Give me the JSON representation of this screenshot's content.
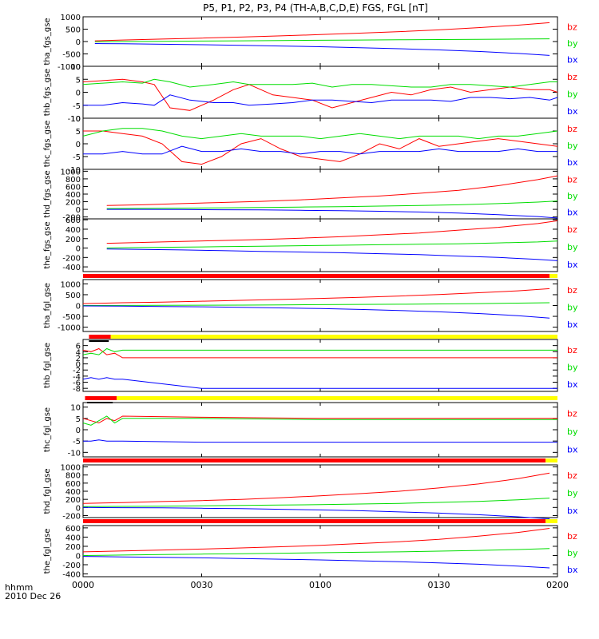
{
  "figure": {
    "title": "P5, P1, P2, P3, P4 (TH-A,B,C,D,E) FGS, FGL [nT]",
    "xtick_labels": [
      "0000",
      "0030",
      "0100",
      "0130",
      "0200"
    ],
    "footer_line1": "hhmm",
    "footer_line2": "2010 Dec 26"
  },
  "colors": {
    "bx": "#0000ff",
    "by": "#00dd00",
    "bz": "#ff0000",
    "bar_red": "#ff0000",
    "bar_yellow": "#ffff00",
    "bar_black": "#000000"
  },
  "chart_data": [
    {
      "type": "line",
      "ylabel": "tha_fgs_gse",
      "x": [
        3,
        10,
        20,
        30,
        40,
        50,
        60,
        70,
        80,
        90,
        100,
        110,
        118
      ],
      "ylim": [
        -1000,
        1000
      ],
      "yticks": [
        1000,
        500,
        0,
        -500,
        -1000
      ],
      "series": [
        {
          "name": "bz",
          "values": [
            30,
            60,
            100,
            140,
            180,
            230,
            280,
            340,
            400,
            470,
            560,
            660,
            760
          ]
        },
        {
          "name": "by",
          "values": [
            -10,
            0,
            10,
            20,
            30,
            40,
            50,
            60,
            70,
            80,
            90,
            100,
            110
          ]
        },
        {
          "name": "bx",
          "values": [
            -80,
            -90,
            -110,
            -130,
            -150,
            -180,
            -210,
            -250,
            -290,
            -340,
            -400,
            -480,
            -560
          ]
        }
      ]
    },
    {
      "type": "line",
      "ylabel": "thb_fgs_gse",
      "x": [
        0,
        5,
        10,
        15,
        18,
        22,
        27,
        33,
        38,
        42,
        48,
        53,
        58,
        63,
        68,
        73,
        78,
        83,
        88,
        93,
        98,
        103,
        108,
        113,
        118,
        120
      ],
      "ylim": [
        -10,
        10
      ],
      "yticks": [
        10,
        5,
        0,
        -5,
        -10
      ],
      "series": [
        {
          "name": "bz",
          "values": [
            4,
            4.5,
            5,
            4,
            3,
            -6,
            -7,
            -3,
            1,
            3,
            -1,
            -2,
            -3,
            -6,
            -4,
            -2,
            0,
            -1,
            1,
            2,
            0,
            1,
            2,
            1,
            1,
            0
          ]
        },
        {
          "name": "by",
          "values": [
            3,
            3.5,
            4,
            3.5,
            5,
            4,
            2,
            3,
            4,
            3,
            3,
            3,
            3.5,
            2,
            3,
            3,
            2.5,
            2,
            2,
            3,
            3,
            2.5,
            2,
            3,
            4,
            4
          ]
        },
        {
          "name": "bx",
          "values": [
            -5,
            -5,
            -4,
            -4.5,
            -5,
            -1,
            -3,
            -4,
            -4,
            -5,
            -4.5,
            -4,
            -3,
            -3,
            -3.5,
            -4,
            -3,
            -3,
            -3,
            -3.5,
            -2,
            -2,
            -2.5,
            -2,
            -3,
            -2
          ]
        }
      ]
    },
    {
      "type": "line",
      "ylabel": "thc_fgs_gse",
      "x": [
        0,
        5,
        10,
        15,
        20,
        25,
        30,
        35,
        40,
        45,
        50,
        55,
        60,
        65,
        70,
        75,
        80,
        85,
        90,
        95,
        100,
        105,
        110,
        115,
        120
      ],
      "ylim": [
        -10,
        10
      ],
      "yticks": [
        10,
        5,
        0,
        -5,
        -10
      ],
      "series": [
        {
          "name": "bz",
          "values": [
            5,
            5,
            4,
            3,
            0,
            -7,
            -8,
            -5,
            0,
            2,
            -2,
            -5,
            -6,
            -7,
            -4,
            0,
            -2,
            2,
            -1,
            0,
            1,
            2,
            1,
            0,
            -1
          ]
        },
        {
          "name": "by",
          "values": [
            3,
            5,
            6,
            6,
            5,
            3,
            2,
            3,
            4,
            3,
            3,
            3,
            2,
            3,
            4,
            3,
            2,
            3,
            3,
            3,
            2,
            3,
            3,
            4,
            5
          ]
        },
        {
          "name": "bx",
          "values": [
            -4,
            -4,
            -3,
            -4,
            -4,
            -1,
            -3,
            -3,
            -2,
            -3,
            -3,
            -4,
            -3,
            -3,
            -4,
            -3,
            -3,
            -3,
            -2,
            -3,
            -3,
            -3,
            -2,
            -3,
            -3
          ]
        }
      ]
    },
    {
      "type": "line",
      "ylabel": "thd_fgs_gse",
      "x": [
        6,
        15,
        25,
        35,
        45,
        55,
        65,
        75,
        85,
        95,
        105,
        115,
        120
      ],
      "ylim": [
        -250,
        1050
      ],
      "yticks": [
        1000,
        800,
        600,
        400,
        200,
        0,
        -200
      ],
      "series": [
        {
          "name": "bz",
          "values": [
            100,
            120,
            150,
            180,
            210,
            250,
            300,
            350,
            420,
            500,
            620,
            780,
            880
          ]
        },
        {
          "name": "by",
          "values": [
            20,
            25,
            30,
            40,
            50,
            60,
            70,
            85,
            100,
            120,
            150,
            190,
            220
          ]
        },
        {
          "name": "bx",
          "values": [
            0,
            0,
            -5,
            -10,
            -15,
            -25,
            -35,
            -50,
            -70,
            -100,
            -140,
            -190,
            -230
          ]
        }
      ]
    },
    {
      "type": "line",
      "ylabel": "the_fgs_gse",
      "x": [
        6,
        15,
        25,
        35,
        45,
        55,
        65,
        75,
        85,
        95,
        105,
        115,
        120
      ],
      "ylim": [
        -500,
        620
      ],
      "yticks": [
        600,
        400,
        200,
        0,
        -200,
        -400
      ],
      "series": [
        {
          "name": "bz",
          "values": [
            100,
            120,
            140,
            160,
            180,
            210,
            240,
            280,
            320,
            380,
            440,
            520,
            580
          ]
        },
        {
          "name": "by",
          "values": [
            0,
            10,
            20,
            30,
            40,
            50,
            60,
            70,
            80,
            90,
            110,
            130,
            150
          ]
        },
        {
          "name": "bx",
          "values": [
            -20,
            -30,
            -40,
            -55,
            -70,
            -85,
            -100,
            -120,
            -140,
            -170,
            -200,
            -240,
            -270
          ]
        }
      ]
    },
    {
      "type": "line",
      "ylabel": "tha_fgl_gse",
      "x": [
        0,
        10,
        20,
        30,
        40,
        50,
        60,
        70,
        80,
        90,
        100,
        110,
        118
      ],
      "ylim": [
        -1200,
        1200
      ],
      "yticks": [
        1000,
        500,
        0,
        -500,
        -1000
      ],
      "series": [
        {
          "name": "bz",
          "values": [
            90,
            130,
            160,
            200,
            240,
            280,
            330,
            380,
            440,
            510,
            590,
            680,
            780
          ]
        },
        {
          "name": "by",
          "values": [
            0,
            5,
            10,
            15,
            20,
            30,
            40,
            50,
            60,
            75,
            90,
            110,
            130
          ]
        },
        {
          "name": "bx",
          "values": [
            -20,
            -30,
            -45,
            -60,
            -80,
            -110,
            -140,
            -180,
            -230,
            -290,
            -370,
            -470,
            -580
          ]
        }
      ]
    },
    {
      "type": "line",
      "ylabel": "thb_fgl_gse",
      "x": [
        0,
        2,
        4,
        6,
        8,
        10,
        30,
        60,
        90,
        120
      ],
      "ylim": [
        -9,
        8
      ],
      "yticks": [
        6,
        4,
        2,
        0,
        -2,
        -4,
        -6,
        -8
      ],
      "series": [
        {
          "name": "bz",
          "values": [
            4.5,
            4,
            5,
            3,
            3.5,
            2,
            2,
            2,
            2,
            2
          ]
        },
        {
          "name": "by",
          "values": [
            3,
            3.5,
            3,
            5,
            4,
            4.5,
            4.5,
            4.5,
            4.5,
            4.5
          ]
        },
        {
          "name": "bx",
          "values": [
            -5,
            -4.5,
            -5,
            -4.5,
            -5,
            -5,
            -8,
            -8,
            -8,
            -8
          ]
        }
      ]
    },
    {
      "type": "line",
      "ylabel": "thc_fgl_gse",
      "x": [
        0,
        2,
        4,
        6,
        8,
        10,
        30,
        60,
        90,
        120
      ],
      "ylim": [
        -12,
        12
      ],
      "yticks": [
        10,
        5,
        0,
        -5,
        -10
      ],
      "series": [
        {
          "name": "bz",
          "values": [
            5,
            4,
            3,
            5,
            4,
            6,
            5.5,
            5,
            5,
            5
          ]
        },
        {
          "name": "by",
          "values": [
            3,
            2,
            4,
            6,
            3,
            5,
            5,
            4.5,
            4.5,
            4.5
          ]
        },
        {
          "name": "bx",
          "values": [
            -5,
            -5,
            -4.5,
            -5,
            -5,
            -5,
            -5.5,
            -5.5,
            -5.5,
            -5.5
          ]
        }
      ]
    },
    {
      "type": "line",
      "ylabel": "thd_fgl_gse",
      "x": [
        0,
        10,
        20,
        30,
        40,
        50,
        60,
        70,
        80,
        90,
        100,
        110,
        118
      ],
      "ylim": [
        -250,
        1050
      ],
      "yticks": [
        1000,
        800,
        600,
        400,
        200,
        0,
        -200
      ],
      "series": [
        {
          "name": "bz",
          "values": [
            100,
            120,
            145,
            170,
            200,
            240,
            285,
            340,
            400,
            480,
            580,
            710,
            850
          ]
        },
        {
          "name": "by",
          "values": [
            20,
            25,
            30,
            40,
            50,
            60,
            70,
            85,
            100,
            125,
            150,
            190,
            230
          ]
        },
        {
          "name": "bx",
          "values": [
            0,
            -5,
            -10,
            -20,
            -30,
            -45,
            -60,
            -80,
            -110,
            -140,
            -180,
            -230,
            -280
          ]
        }
      ]
    },
    {
      "type": "line",
      "ylabel": "the_fgl_gse",
      "x": [
        0,
        10,
        20,
        30,
        40,
        50,
        60,
        70,
        80,
        90,
        100,
        110,
        118
      ],
      "ylim": [
        -460,
        650
      ],
      "yticks": [
        600,
        400,
        200,
        0,
        -200,
        -400
      ],
      "series": [
        {
          "name": "bz",
          "values": [
            80,
            100,
            120,
            140,
            165,
            190,
            220,
            260,
            300,
            350,
            420,
            500,
            590
          ]
        },
        {
          "name": "by",
          "values": [
            0,
            10,
            20,
            30,
            40,
            50,
            60,
            70,
            80,
            95,
            110,
            130,
            150
          ]
        },
        {
          "name": "bx",
          "values": [
            -20,
            -30,
            -40,
            -50,
            -65,
            -80,
            -95,
            -115,
            -135,
            -160,
            -190,
            -230,
            -270
          ]
        }
      ]
    }
  ],
  "status_bars": [
    {
      "segments": [
        {
          "color": "bar_red",
          "start": 0,
          "end": 118
        },
        {
          "color": "bar_yellow",
          "start": 118,
          "end": 120
        }
      ]
    },
    {
      "segments": [
        {
          "color": "bar_red",
          "start": 1.5,
          "end": 7
        },
        {
          "color": "bar_yellow",
          "start": 7,
          "end": 120
        }
      ],
      "sub": {
        "color": "bar_black",
        "start": 1.5,
        "end": 6.5
      }
    },
    {
      "segments": [
        {
          "color": "bar_red",
          "start": 0.5,
          "end": 8.5
        },
        {
          "color": "bar_yellow",
          "start": 8.5,
          "end": 120
        }
      ],
      "sub": {
        "color": "bar_black",
        "start": 1,
        "end": 7.5
      }
    },
    {
      "segments": [
        {
          "color": "bar_red",
          "start": 0,
          "end": 117
        },
        {
          "color": "bar_yellow",
          "start": 117,
          "end": 120
        }
      ]
    },
    {
      "segments": [
        {
          "color": "bar_red",
          "start": 0,
          "end": 117
        },
        {
          "color": "bar_yellow",
          "start": 117,
          "end": 120
        }
      ]
    }
  ]
}
